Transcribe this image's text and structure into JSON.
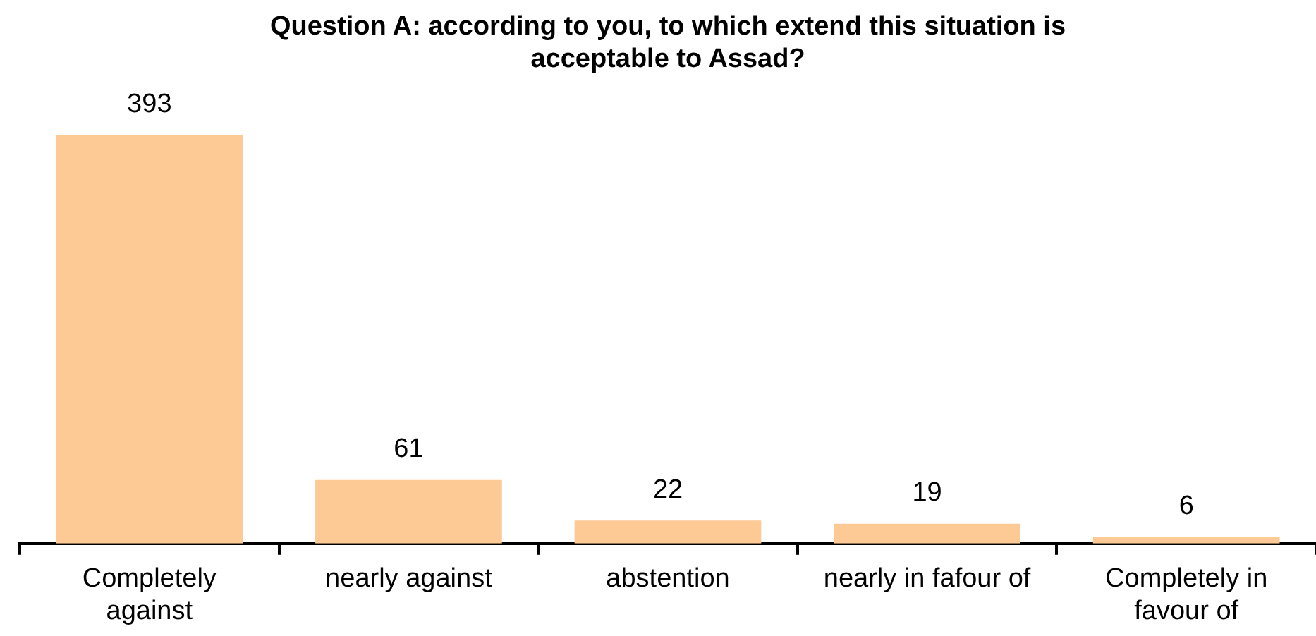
{
  "chart_data": {
    "type": "bar",
    "title": "Question A: according to you, to which extend this situation is acceptable to Assad?",
    "categories": [
      "Completely against",
      "nearly against",
      "abstention",
      "nearly in fafour of",
      "Completely in favour of"
    ],
    "values": [
      393,
      61,
      22,
      19,
      6
    ],
    "color": "#fdc995",
    "data_labels": true,
    "grid": false,
    "legend": false
  }
}
